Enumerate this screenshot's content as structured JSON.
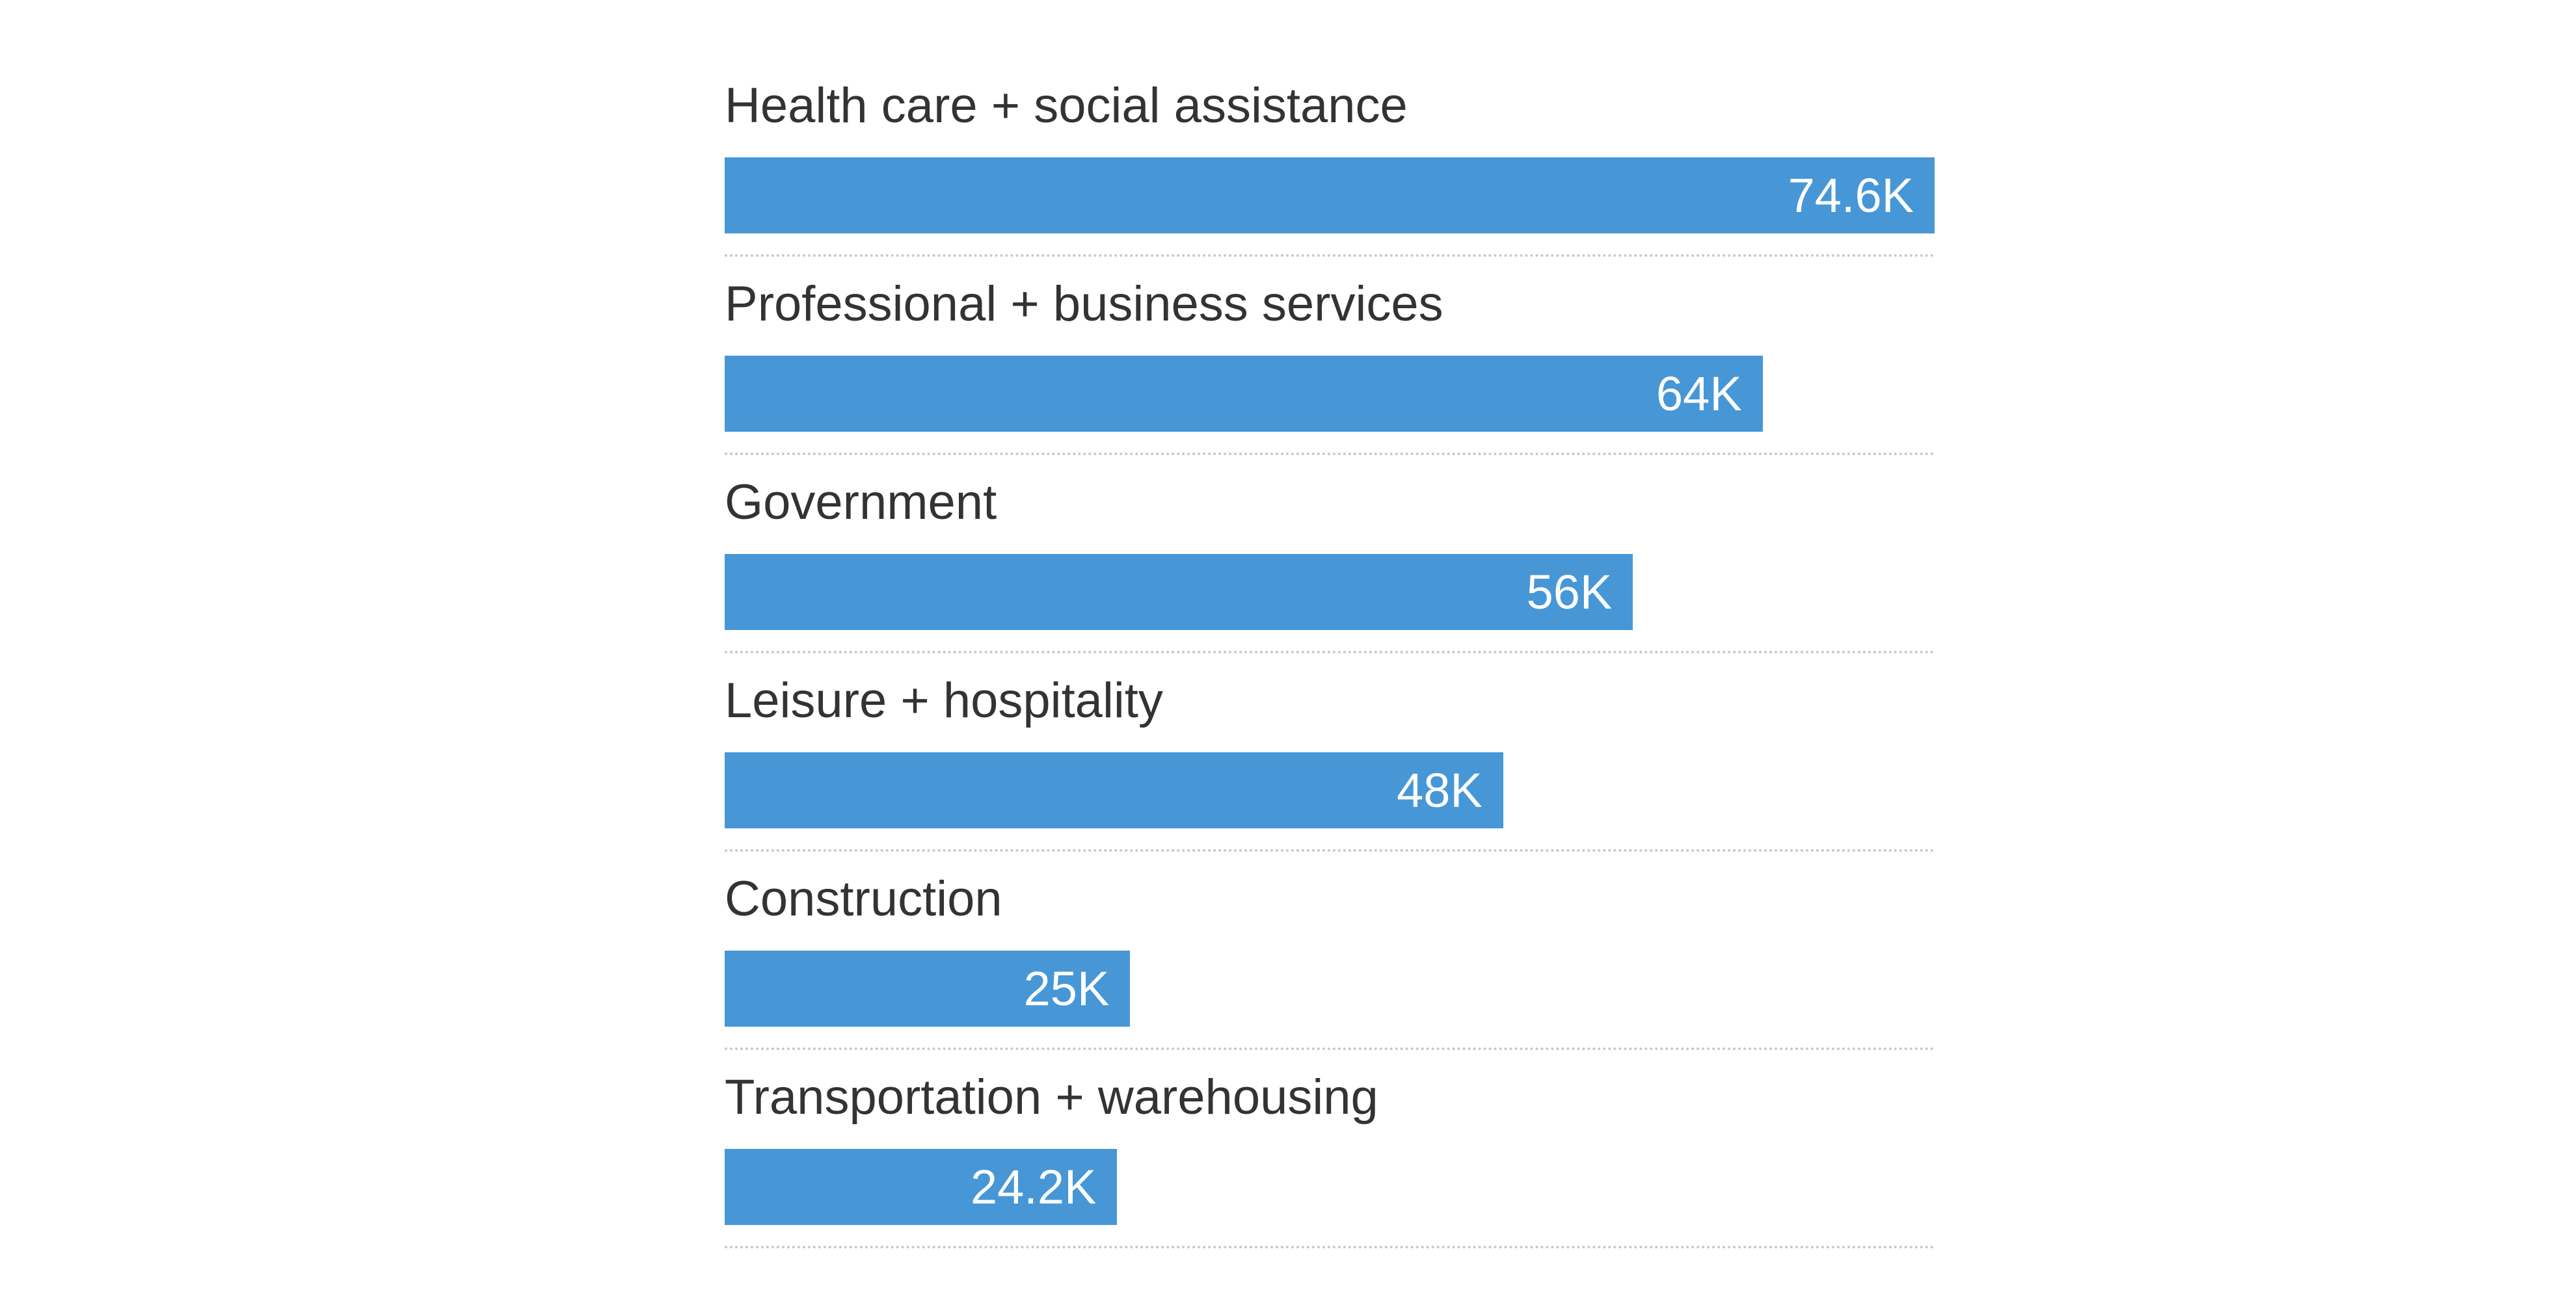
{
  "chart_data": {
    "type": "bar",
    "orientation": "horizontal",
    "categories": [
      "Health care + social assistance",
      "Professional + business services",
      "Government",
      "Leisure + hospitality",
      "Construction",
      "Transportation + warehousing"
    ],
    "values": [
      74.6,
      64,
      56,
      48,
      25,
      24.2
    ],
    "value_labels": [
      "74.6K",
      "64K",
      "56K",
      "48K",
      "25K",
      "24.2K"
    ],
    "value_unit": "K",
    "xlim": [
      0,
      74.6
    ],
    "grid": false,
    "legend": "none",
    "colors": {
      "bar": "#4797d7",
      "value_text": "#ffffff",
      "label_text": "#333333",
      "separator": "#c8c8c8"
    }
  }
}
